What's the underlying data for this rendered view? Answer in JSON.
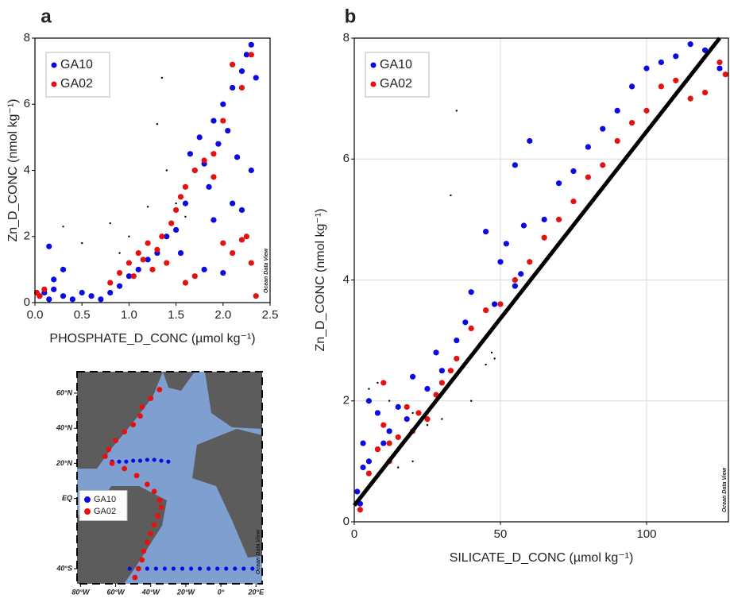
{
  "chart_data": [
    {
      "type": "scatter",
      "panel_label": "a",
      "xlabel": "PHOSPHATE_D_CONC (µmol kg⁻¹)",
      "ylabel": "Zn_D_CONC (nmol kg⁻¹)",
      "watermark": "Ocean Data View",
      "xlim": [
        0,
        2.5
      ],
      "ylim": [
        0,
        8
      ],
      "xticks": [
        {
          "value": 0,
          "label": "0.0"
        },
        0.5,
        {
          "value": 1,
          "label": "1.0"
        },
        1.5,
        {
          "value": 2,
          "label": "2.0"
        },
        2.5
      ],
      "yticks": [
        0,
        2,
        4,
        6,
        8
      ],
      "grid": false,
      "legend": "upper left",
      "series": [
        {
          "color": "#000000",
          "x": [
            0.3,
            0.5,
            0.8,
            1.0,
            1.2,
            1.3,
            1.35,
            1.4,
            1.5,
            1.6,
            0.9,
            1.1
          ],
          "y": [
            2.3,
            1.8,
            2.4,
            2.0,
            2.9,
            5.4,
            6.8,
            4.0,
            3.0,
            2.6,
            1.5,
            1.0
          ]
        },
        {
          "name": "GA10",
          "color": "#0a0ae6",
          "x": [
            0.05,
            0.1,
            0.15,
            0.2,
            0.3,
            0.4,
            0.5,
            0.6,
            0.7,
            0.8,
            0.9,
            1.0,
            1.1,
            1.2,
            1.3,
            1.4,
            1.5,
            1.55,
            1.6,
            1.65,
            1.7,
            1.75,
            1.8,
            1.85,
            1.9,
            1.95,
            2.0,
            2.05,
            2.1,
            2.15,
            2.2,
            2.25,
            2.3,
            2.3,
            2.35,
            1.8,
            1.9,
            2.0,
            2.1,
            2.2,
            0.15,
            0.3,
            0.2
          ],
          "y": [
            0.2,
            0.3,
            0.1,
            0.4,
            0.2,
            0.1,
            0.3,
            0.2,
            0.1,
            0.3,
            0.5,
            0.8,
            1.0,
            1.3,
            1.5,
            2.0,
            2.2,
            1.5,
            3.0,
            4.5,
            4.0,
            5.0,
            4.2,
            3.5,
            5.5,
            4.8,
            6.0,
            5.2,
            6.5,
            4.4,
            7.0,
            7.5,
            7.8,
            4.0,
            6.8,
            1.0,
            2.5,
            0.9,
            3.0,
            2.8,
            1.7,
            1.0,
            0.7
          ]
        },
        {
          "name": "GA02",
          "color": "#e61010",
          "x": [
            0.02,
            0.05,
            0.1,
            0.8,
            0.9,
            1.0,
            1.05,
            1.1,
            1.15,
            1.2,
            1.25,
            1.3,
            1.35,
            1.4,
            1.45,
            1.5,
            1.55,
            1.6,
            1.7,
            1.8,
            1.9,
            2.0,
            2.1,
            2.2,
            2.25,
            2.3,
            2.35,
            2.2,
            2.1,
            2.0,
            1.9,
            2.3,
            1.6,
            1.7
          ],
          "y": [
            0.3,
            0.2,
            0.4,
            0.6,
            0.9,
            1.2,
            0.8,
            1.5,
            1.3,
            1.8,
            1.0,
            1.6,
            2.0,
            1.2,
            2.4,
            2.8,
            3.2,
            3.5,
            4.0,
            4.3,
            3.8,
            1.8,
            1.5,
            1.9,
            2.0,
            1.2,
            0.2,
            6.5,
            7.2,
            5.5,
            4.5,
            7.5,
            0.6,
            0.8
          ]
        }
      ]
    },
    {
      "type": "scatter",
      "panel_label": "b",
      "xlabel": "SILICATE_D_CONC (µmol kg⁻¹)",
      "ylabel": "Zn_D_CONC (nmol kg⁻¹)",
      "watermark": "Ocean Data View",
      "xlim": [
        0,
        128
      ],
      "ylim": [
        0,
        8
      ],
      "xticks": [
        0,
        50,
        100
      ],
      "yticks": [
        0,
        2,
        4,
        6,
        8
      ],
      "grid": true,
      "legend": "upper left",
      "series": [
        {
          "color": "#000000",
          "x": [
            5,
            8,
            12,
            20,
            25,
            30,
            33,
            35,
            40,
            45,
            47,
            48,
            20,
            15
          ],
          "y": [
            2.2,
            2.3,
            2.0,
            1.8,
            1.6,
            1.7,
            5.4,
            6.8,
            2.0,
            2.6,
            2.8,
            2.7,
            1.0,
            0.9
          ]
        },
        {
          "name": "GA10",
          "color": "#0a0ae6",
          "x": [
            1,
            2,
            3,
            5,
            8,
            10,
            12,
            15,
            18,
            20,
            25,
            28,
            30,
            35,
            38,
            40,
            45,
            48,
            50,
            52,
            55,
            58,
            60,
            65,
            70,
            75,
            80,
            85,
            90,
            95,
            100,
            105,
            110,
            115,
            120,
            125,
            5,
            3,
            55,
            57
          ],
          "y": [
            0.5,
            0.3,
            1.3,
            1.0,
            1.8,
            1.3,
            1.5,
            1.9,
            1.7,
            2.4,
            2.2,
            2.8,
            2.5,
            3.0,
            3.3,
            3.8,
            4.8,
            3.6,
            4.3,
            4.6,
            5.9,
            4.9,
            6.3,
            5.0,
            5.6,
            5.8,
            6.2,
            6.5,
            6.8,
            7.2,
            7.5,
            7.6,
            7.7,
            7.9,
            7.8,
            7.5,
            2.0,
            0.9,
            3.9,
            4.1
          ]
        },
        {
          "name": "GA02",
          "color": "#e61010",
          "x": [
            2,
            5,
            8,
            10,
            12,
            15,
            18,
            20,
            22,
            25,
            28,
            30,
            33,
            35,
            40,
            45,
            50,
            55,
            60,
            65,
            70,
            75,
            80,
            85,
            90,
            95,
            100,
            105,
            110,
            115,
            120,
            125,
            127,
            10,
            12
          ],
          "y": [
            0.2,
            0.8,
            1.2,
            1.6,
            1.0,
            1.4,
            1.9,
            1.5,
            1.8,
            1.7,
            2.1,
            2.3,
            2.5,
            2.7,
            3.2,
            3.5,
            3.6,
            4.0,
            4.3,
            4.7,
            5.0,
            5.3,
            5.7,
            5.9,
            6.3,
            6.6,
            6.8,
            7.2,
            7.3,
            7.0,
            7.1,
            7.6,
            7.4,
            2.3,
            1.3
          ]
        }
      ],
      "fit": {
        "color": "#000000",
        "x": [
          0,
          125
        ],
        "y": [
          0.27,
          8
        ]
      }
    },
    {
      "type": "map",
      "watermark": "Ocean Data View",
      "xlim": [
        -82,
        23.5
      ],
      "ylim": [
        -48.6,
        72.2
      ],
      "xticks": [
        {
          "value": -80,
          "label": "80°W"
        },
        {
          "value": -60,
          "label": "60°W"
        },
        {
          "value": -40,
          "label": "40°W"
        },
        {
          "value": -20,
          "label": "20°W"
        },
        {
          "value": 0,
          "label": "0°"
        },
        {
          "value": 20,
          "label": "20°E"
        }
      ],
      "yticks": [
        {
          "value": 60,
          "label": "60°N"
        },
        {
          "value": 40,
          "label": "40°N"
        },
        {
          "value": 20,
          "label": "20°N"
        },
        {
          "value": 0,
          "label": "EQ"
        },
        {
          "value": -40,
          "label": "40°S"
        }
      ],
      "grid": false,
      "legend": "lower left",
      "series": [
        {
          "name": "GA10",
          "color": "#0a0ae6",
          "x": [
            -52,
            -47,
            -42,
            -37,
            -32,
            -27,
            -22,
            -17,
            -12,
            -7,
            -2,
            3,
            8,
            13,
            18,
            -62,
            -58,
            -54,
            -50,
            -46,
            -42,
            -38,
            -34,
            -30
          ],
          "y": [
            -40,
            -40,
            -40,
            -40,
            -40,
            -40,
            -40,
            -40,
            -40,
            -40,
            -40,
            -40,
            -40,
            -40,
            -40,
            21,
            21,
            21,
            21.5,
            21.5,
            22,
            22,
            21.5,
            21
          ]
        },
        {
          "name": "GA02",
          "color": "#e61010",
          "x": [
            -35,
            -40,
            -45,
            -46,
            -50,
            -55,
            -60,
            -64,
            -66,
            -62,
            -55,
            -48,
            -42,
            -38,
            -35,
            -34,
            -36,
            -38,
            -40,
            -42,
            -44,
            -45,
            -47,
            -49
          ],
          "y": [
            62,
            57,
            52,
            47,
            42,
            38,
            33,
            28,
            24,
            20,
            17,
            13,
            8,
            4,
            -1,
            -5,
            -10,
            -15,
            -20,
            -25,
            -30,
            -35,
            -40,
            -45
          ]
        }
      ]
    }
  ]
}
